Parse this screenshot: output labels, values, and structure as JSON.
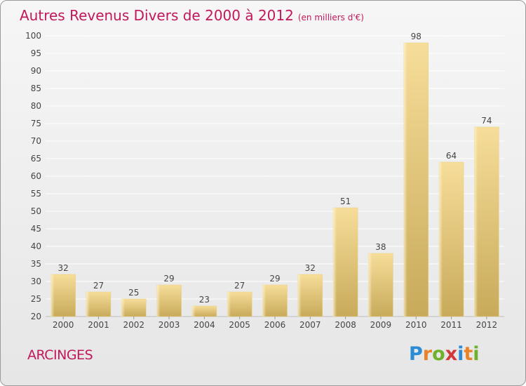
{
  "header": {
    "title": "Autres Revenus Divers de 2000 à 2012",
    "unit": "(en milliers d'€)"
  },
  "footer": {
    "commune": "ARCINGES",
    "logo_text": "Proxiti",
    "logo_colors": [
      "#2a8bd6",
      "#e8832a",
      "#6fb12a",
      "#d23a3a",
      "#2a8bd6",
      "#e8832a",
      "#6fb12a"
    ]
  },
  "colors": {
    "title": "#c2185b",
    "bar_light": "#f6dd99",
    "bar_dark": "#c8aa5a",
    "grid": "#ffffff",
    "axis_text": "#444444"
  },
  "chart_data": {
    "type": "bar",
    "categories": [
      "2000",
      "2001",
      "2002",
      "2003",
      "2004",
      "2005",
      "2006",
      "2007",
      "2008",
      "2009",
      "2010",
      "2011",
      "2012"
    ],
    "values": [
      32,
      27,
      25,
      29,
      23,
      27,
      29,
      32,
      51,
      38,
      98,
      64,
      74
    ],
    "ylim": [
      20,
      100
    ],
    "yticks": [
      20,
      25,
      30,
      35,
      40,
      45,
      50,
      55,
      60,
      65,
      70,
      75,
      80,
      85,
      90,
      95,
      100
    ],
    "grid": true,
    "data_labels": true
  }
}
